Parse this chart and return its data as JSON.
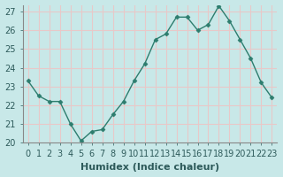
{
  "x": [
    0,
    1,
    2,
    3,
    4,
    5,
    6,
    7,
    8,
    9,
    10,
    11,
    12,
    13,
    14,
    15,
    16,
    17,
    18,
    19,
    20,
    21,
    22,
    23
  ],
  "y": [
    23.3,
    22.5,
    22.2,
    22.2,
    21.0,
    20.1,
    20.6,
    20.7,
    21.5,
    22.2,
    23.3,
    24.2,
    25.5,
    25.8,
    26.7,
    26.7,
    26.0,
    26.3,
    27.3,
    26.5,
    25.5,
    24.5,
    23.2,
    22.4
  ],
  "xlabel": "Humidex (Indice chaleur)",
  "ylim": [
    20,
    27
  ],
  "yticks": [
    20,
    21,
    22,
    23,
    24,
    25,
    26,
    27
  ],
  "xtick_labels": [
    "0",
    "1",
    "2",
    "3",
    "4",
    "5",
    "6",
    "7",
    "8",
    "9",
    "10",
    "11",
    "12",
    "13",
    "14",
    "15",
    "16",
    "17",
    "18",
    "19",
    "20",
    "21",
    "22",
    "23"
  ],
  "line_color": "#2d7d6e",
  "marker": "D",
  "marker_size": 2.5,
  "background_color": "#c8e8e8",
  "grid_color": "#e8c8c8",
  "spine_color": "#888888",
  "xlabel_fontsize": 8,
  "tick_fontsize": 7,
  "title_color": "#2d7d6e"
}
